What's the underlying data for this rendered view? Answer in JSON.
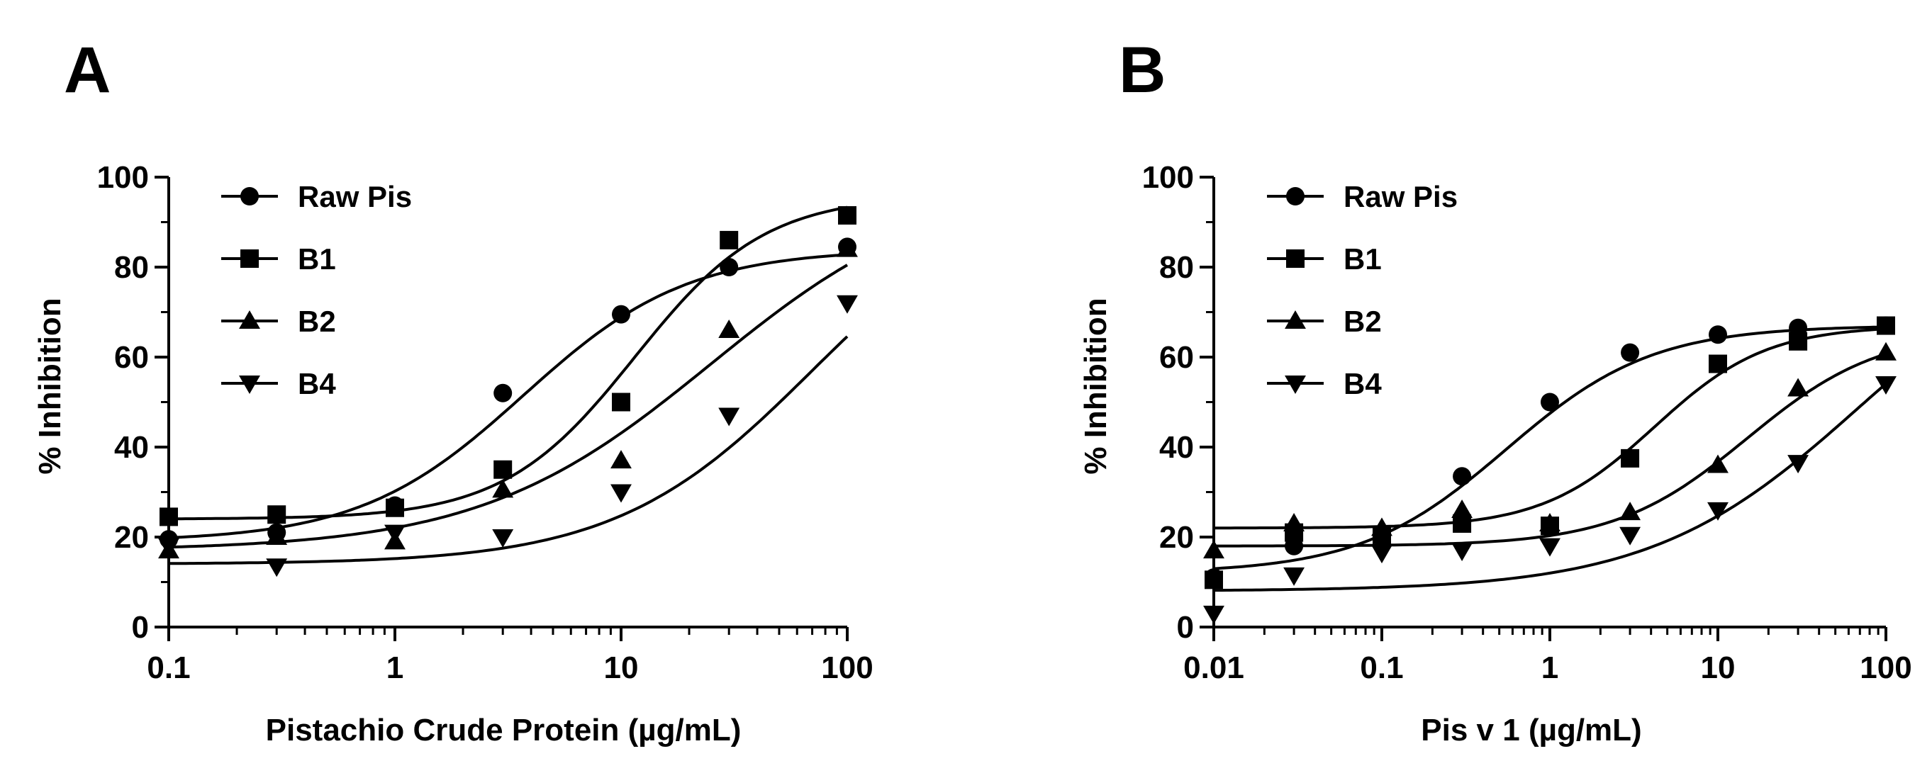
{
  "chart_data": [
    {
      "type": "scatter",
      "panel_label": "A",
      "xlabel": "Pistachio Crude Protein (µg/mL)",
      "ylabel": "% Inhibition",
      "xscale": "log",
      "xlim": [
        0.1,
        100
      ],
      "ylim": [
        0,
        100
      ],
      "xticks": [
        0.1,
        1,
        10,
        100
      ],
      "xtick_labels": [
        "0.1",
        "1",
        "10",
        "100"
      ],
      "yticks": [
        0,
        20,
        40,
        60,
        80,
        100
      ],
      "ytick_labels": [
        "0",
        "20",
        "40",
        "60",
        "80",
        "100"
      ],
      "grid": false,
      "legend_position": "top-left",
      "series": [
        {
          "name": "Raw Pis",
          "marker": "circle",
          "x": [
            0.1,
            0.3,
            1,
            3,
            10,
            30,
            100
          ],
          "y": [
            19.5,
            21,
            27,
            52,
            69.5,
            80,
            84.5
          ],
          "fit": {
            "bottom": 19,
            "top": 84,
            "ec50": 3.7,
            "hill": 1.2
          }
        },
        {
          "name": "B1",
          "marker": "square",
          "x": [
            0.1,
            0.3,
            1,
            3,
            10,
            30,
            100
          ],
          "y": [
            24.5,
            25,
            26.5,
            35,
            50,
            86,
            91.5
          ],
          "fit": {
            "bottom": 24,
            "top": 96,
            "ec50": 11.5,
            "hill": 1.5
          }
        },
        {
          "name": "B2",
          "marker": "triangle-up",
          "x": [
            0.1,
            0.3,
            1,
            3,
            10,
            30,
            100
          ],
          "y": [
            17,
            20,
            19,
            30.5,
            37,
            66,
            84
          ],
          "fit": {
            "bottom": 17,
            "top": 100,
            "ec50": 25,
            "hill": 0.85
          }
        },
        {
          "name": "B4",
          "marker": "triangle-down",
          "x": [
            0.1,
            0.3,
            1,
            3,
            10,
            30,
            100
          ],
          "y": [
            18,
            13.5,
            21,
            20,
            30,
            47,
            72
          ],
          "fit": {
            "bottom": 14,
            "top": 100,
            "ec50": 70,
            "hill": 1.0
          }
        }
      ]
    },
    {
      "type": "scatter",
      "panel_label": "B",
      "xlabel": "Pis v 1  (µg/mL)",
      "ylabel": "% Inhibition",
      "xscale": "log",
      "xlim": [
        0.01,
        100
      ],
      "ylim": [
        0,
        100
      ],
      "xticks": [
        0.01,
        0.1,
        1,
        10,
        100
      ],
      "xtick_labels": [
        "0.01",
        "0.1",
        "1",
        "10",
        "100"
      ],
      "yticks": [
        0,
        20,
        40,
        60,
        80,
        100
      ],
      "ytick_labels": [
        "0",
        "20",
        "40",
        "60",
        "80",
        "100"
      ],
      "grid": false,
      "legend_position": "top-left",
      "series": [
        {
          "name": "Raw Pis",
          "marker": "circle",
          "x": [
            0.01,
            0.03,
            0.1,
            0.3,
            1,
            3,
            10,
            30,
            100
          ],
          "y": [
            11,
            18,
            20,
            33.5,
            50,
            61,
            65,
            66.5,
            67
          ],
          "fit": {
            "bottom": 12,
            "top": 67,
            "ec50": 0.55,
            "hill": 1.0
          }
        },
        {
          "name": "B1",
          "marker": "square",
          "x": [
            0.01,
            0.03,
            0.1,
            0.3,
            1,
            3,
            10,
            30,
            100
          ],
          "y": [
            10.5,
            21,
            20.5,
            23,
            22.5,
            37.5,
            58.5,
            63.5,
            67
          ],
          "fit": {
            "bottom": 22,
            "top": 67,
            "ec50": 4.2,
            "hill": 1.3
          }
        },
        {
          "name": "B2",
          "marker": "triangle-up",
          "x": [
            0.01,
            0.03,
            0.1,
            0.3,
            1,
            3,
            10,
            30,
            100
          ],
          "y": [
            17,
            23,
            22,
            26,
            23,
            25.5,
            36,
            53,
            61
          ],
          "fit": {
            "bottom": 18,
            "top": 66,
            "ec50": 15,
            "hill": 1.1
          }
        },
        {
          "name": "B4",
          "marker": "triangle-down",
          "x": [
            0.01,
            0.03,
            0.1,
            0.3,
            1,
            3,
            10,
            30,
            100
          ],
          "y": [
            3,
            11.5,
            16.5,
            17,
            18,
            20.5,
            26,
            36.5,
            54
          ],
          "fit": {
            "bottom": 8,
            "top": 90,
            "ec50": 70,
            "hill": 0.7
          }
        }
      ]
    }
  ]
}
